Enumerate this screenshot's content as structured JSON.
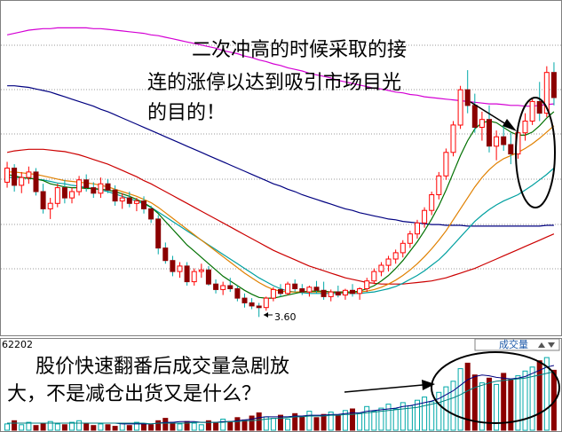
{
  "chart_data": [
    {
      "type": "candlestick",
      "panel": "price",
      "ylim": [
        3.4,
        7.6
      ],
      "grid": true,
      "low_label": "3.60",
      "annotation": [
        "二次冲高的时候采取的接",
        "连的涨停以达到吸引市场目光",
        "的目的！"
      ],
      "candles": [
        [
          5.32,
          5.58,
          5.25,
          5.5
        ],
        [
          5.5,
          5.55,
          5.2,
          5.28
        ],
        [
          5.28,
          5.45,
          5.18,
          5.38
        ],
        [
          5.38,
          5.52,
          5.3,
          5.45
        ],
        [
          5.45,
          5.5,
          5.15,
          5.2
        ],
        [
          5.2,
          5.3,
          4.92,
          4.98
        ],
        [
          4.98,
          5.12,
          4.85,
          5.05
        ],
        [
          5.05,
          5.3,
          5.0,
          5.25
        ],
        [
          5.25,
          5.35,
          5.05,
          5.12
        ],
        [
          5.12,
          5.25,
          5.05,
          5.2
        ],
        [
          5.2,
          5.4,
          5.15,
          5.35
        ],
        [
          5.35,
          5.42,
          5.2,
          5.25
        ],
        [
          5.25,
          5.32,
          5.12,
          5.18
        ],
        [
          5.18,
          5.38,
          5.12,
          5.3
        ],
        [
          5.3,
          5.36,
          5.18,
          5.22
        ],
        [
          5.22,
          5.28,
          5.02,
          5.08
        ],
        [
          5.08,
          5.18,
          4.98,
          5.12
        ],
        [
          5.12,
          5.2,
          5.0,
          5.05
        ],
        [
          5.05,
          5.12,
          4.95,
          5.08
        ],
        [
          5.08,
          5.14,
          4.92,
          4.98
        ],
        [
          4.98,
          5.02,
          4.8,
          4.85
        ],
        [
          4.85,
          4.9,
          4.4,
          4.48
        ],
        [
          4.48,
          4.55,
          4.28,
          4.32
        ],
        [
          4.32,
          4.38,
          4.12,
          4.18
        ],
        [
          4.18,
          4.3,
          4.1,
          4.25
        ],
        [
          4.25,
          4.3,
          4.0,
          4.05
        ],
        [
          4.05,
          4.22,
          4.0,
          4.18
        ],
        [
          4.18,
          4.28,
          4.1,
          4.2
        ],
        [
          4.2,
          4.25,
          4.0,
          4.02
        ],
        [
          4.02,
          4.08,
          3.9,
          3.95
        ],
        [
          3.95,
          4.05,
          3.88,
          4.0
        ],
        [
          4.0,
          4.1,
          3.92,
          3.96
        ],
        [
          3.96,
          4.0,
          3.8,
          3.84
        ],
        [
          3.84,
          3.9,
          3.72,
          3.78
        ],
        [
          3.78,
          3.84,
          3.7,
          3.74
        ],
        [
          3.74,
          3.78,
          3.6,
          3.72
        ],
        [
          3.72,
          3.86,
          3.68,
          3.84
        ],
        [
          3.84,
          3.98,
          3.8,
          3.95
        ],
        [
          3.95,
          4.02,
          3.86,
          3.9
        ],
        [
          3.9,
          4.05,
          3.88,
          4.02
        ],
        [
          4.02,
          4.08,
          3.92,
          3.96
        ],
        [
          3.96,
          4.02,
          3.88,
          3.92
        ],
        [
          3.92,
          4.0,
          3.86,
          3.98
        ],
        [
          3.98,
          4.06,
          3.9,
          3.94
        ],
        [
          3.94,
          4.05,
          3.82,
          3.86
        ],
        [
          3.86,
          3.95,
          3.8,
          3.92
        ],
        [
          3.92,
          4.0,
          3.85,
          3.88
        ],
        [
          3.88,
          3.96,
          3.82,
          3.94
        ],
        [
          3.94,
          4.02,
          3.86,
          3.9
        ],
        [
          3.9,
          3.98,
          3.82,
          3.96
        ],
        [
          3.96,
          4.1,
          3.92,
          4.06
        ],
        [
          4.06,
          4.22,
          4.02,
          4.18
        ],
        [
          4.18,
          4.3,
          4.12,
          4.26
        ],
        [
          4.26,
          4.38,
          4.18,
          4.34
        ],
        [
          4.34,
          4.46,
          4.28,
          4.42
        ],
        [
          4.42,
          4.58,
          4.36,
          4.54
        ],
        [
          4.54,
          4.7,
          4.48,
          4.66
        ],
        [
          4.66,
          4.84,
          4.6,
          4.8
        ],
        [
          4.8,
          5.0,
          4.74,
          4.96
        ],
        [
          4.96,
          5.2,
          4.9,
          5.16
        ],
        [
          5.16,
          5.45,
          5.1,
          5.4
        ],
        [
          5.4,
          5.75,
          5.35,
          5.7
        ],
        [
          5.7,
          6.1,
          5.65,
          6.05
        ],
        [
          6.05,
          6.55,
          6.0,
          6.5
        ],
        [
          6.5,
          6.75,
          6.2,
          6.3
        ],
        [
          6.3,
          6.45,
          5.95,
          6.02
        ],
        [
          6.02,
          6.22,
          5.85,
          6.12
        ],
        [
          6.12,
          6.3,
          5.7,
          5.78
        ],
        [
          5.78,
          5.98,
          5.6,
          5.9
        ],
        [
          5.9,
          6.05,
          5.72,
          5.8
        ],
        [
          5.8,
          5.95,
          5.55,
          5.68
        ],
        [
          5.68,
          6.0,
          5.62,
          5.95
        ],
        [
          5.95,
          6.2,
          5.85,
          6.1
        ],
        [
          6.1,
          6.4,
          6.05,
          6.35
        ],
        [
          6.35,
          6.6,
          6.1,
          6.2
        ],
        [
          6.2,
          6.8,
          6.15,
          6.72
        ],
        [
          6.72,
          6.85,
          6.3,
          6.4
        ]
      ],
      "lines": [
        {
          "color": "#d400d4",
          "values": [
            7.2,
            7.22,
            7.24,
            7.26,
            7.27,
            7.28,
            7.28,
            7.29,
            7.29,
            7.29,
            7.29,
            7.29,
            7.28,
            7.28,
            7.27,
            7.26,
            7.25,
            7.24,
            7.23,
            7.22,
            7.2,
            7.19,
            7.17,
            7.15,
            7.13,
            7.11,
            7.09,
            7.07,
            7.05,
            7.03,
            7.0,
            6.98,
            6.96,
            6.93,
            6.91,
            6.88,
            6.86,
            6.83,
            6.81,
            6.78,
            6.76,
            6.74,
            6.71,
            6.69,
            6.67,
            6.65,
            6.62,
            6.6,
            6.58,
            6.56,
            6.54,
            6.52,
            6.51,
            6.49,
            6.47,
            6.46,
            6.44,
            6.43,
            6.41,
            6.4,
            6.39,
            6.38,
            6.37,
            6.36,
            6.35,
            6.34,
            6.33,
            6.32,
            6.32,
            6.31,
            6.3,
            6.3,
            6.29,
            6.29,
            6.3,
            6.31,
            6.32
          ]
        },
        {
          "color": "#000080",
          "values": [
            6.55,
            6.55,
            6.54,
            6.53,
            6.51,
            6.49,
            6.47,
            6.44,
            6.41,
            6.38,
            6.35,
            6.32,
            6.29,
            6.25,
            6.22,
            6.18,
            6.14,
            6.1,
            6.06,
            6.02,
            5.98,
            5.94,
            5.9,
            5.86,
            5.82,
            5.78,
            5.74,
            5.7,
            5.66,
            5.62,
            5.58,
            5.54,
            5.5,
            5.46,
            5.42,
            5.38,
            5.34,
            5.3,
            5.27,
            5.23,
            5.2,
            5.16,
            5.13,
            5.1,
            5.07,
            5.04,
            5.01,
            4.98,
            4.96,
            4.93,
            4.91,
            4.89,
            4.87,
            4.85,
            4.84,
            4.82,
            4.81,
            4.8,
            4.79,
            4.78,
            4.78,
            4.77,
            4.77,
            4.77,
            4.76,
            4.76,
            4.76,
            4.76,
            4.76,
            4.76,
            4.76,
            4.76,
            4.76,
            4.76,
            4.76,
            4.77,
            4.77
          ]
        },
        {
          "color": "#cc0000",
          "values": [
            5.7,
            5.72,
            5.73,
            5.74,
            5.74,
            5.74,
            5.73,
            5.72,
            5.71,
            5.69,
            5.67,
            5.64,
            5.61,
            5.58,
            5.55,
            5.51,
            5.47,
            5.43,
            5.39,
            5.34,
            5.3,
            5.25,
            5.2,
            5.15,
            5.1,
            5.05,
            5.0,
            4.95,
            4.9,
            4.85,
            4.8,
            4.75,
            4.7,
            4.65,
            4.6,
            4.55,
            4.5,
            4.45,
            4.41,
            4.37,
            4.33,
            4.29,
            4.25,
            4.22,
            4.19,
            4.16,
            4.13,
            4.1,
            4.08,
            4.06,
            4.04,
            4.03,
            4.02,
            4.02,
            4.02,
            4.02,
            4.03,
            4.04,
            4.05,
            4.06,
            4.08,
            4.1,
            4.13,
            4.16,
            4.19,
            4.22,
            4.26,
            4.3,
            4.34,
            4.38,
            4.42,
            4.46,
            4.5,
            4.54,
            4.58,
            4.62,
            4.66
          ]
        },
        {
          "color": "#00a0a0",
          "values": [
            5.38,
            5.38,
            5.38,
            5.37,
            5.36,
            5.35,
            5.33,
            5.31,
            5.3,
            5.28,
            5.27,
            5.25,
            5.24,
            5.22,
            5.2,
            5.17,
            5.14,
            5.11,
            5.08,
            5.04,
            5.0,
            4.94,
            4.88,
            4.82,
            4.76,
            4.7,
            4.64,
            4.58,
            4.52,
            4.46,
            4.4,
            4.34,
            4.28,
            4.22,
            4.16,
            4.1,
            4.05,
            4.0,
            3.96,
            3.93,
            3.92,
            3.91,
            3.9,
            3.9,
            3.9,
            3.9,
            3.9,
            3.9,
            3.9,
            3.9,
            3.91,
            3.92,
            3.94,
            3.96,
            3.99,
            4.03,
            4.08,
            4.13,
            4.19,
            4.26,
            4.33,
            4.42,
            4.52,
            4.62,
            4.72,
            4.82,
            4.9,
            4.97,
            5.03,
            5.08,
            5.12,
            5.16,
            5.22,
            5.28,
            5.35,
            5.42,
            5.5
          ]
        },
        {
          "color": "#e08000",
          "values": [
            5.45,
            5.45,
            5.44,
            5.43,
            5.42,
            5.4,
            5.38,
            5.36,
            5.34,
            5.33,
            5.32,
            5.31,
            5.3,
            5.28,
            5.26,
            5.23,
            5.2,
            5.17,
            5.14,
            5.1,
            5.06,
            5.0,
            4.93,
            4.86,
            4.79,
            4.72,
            4.65,
            4.58,
            4.51,
            4.44,
            4.37,
            4.3,
            4.23,
            4.16,
            4.1,
            4.04,
            3.99,
            3.95,
            3.93,
            3.92,
            3.92,
            3.92,
            3.92,
            3.92,
            3.92,
            3.92,
            3.91,
            3.91,
            3.91,
            3.92,
            3.93,
            3.95,
            3.98,
            4.02,
            4.07,
            4.13,
            4.2,
            4.28,
            4.37,
            4.47,
            4.58,
            4.7,
            4.84,
            4.98,
            5.12,
            5.26,
            5.38,
            5.48,
            5.56,
            5.62,
            5.66,
            5.7,
            5.75,
            5.81,
            5.88,
            5.96,
            6.04
          ]
        },
        {
          "color": "#007000",
          "values": [
            5.42,
            5.4,
            5.38,
            5.37,
            5.36,
            5.34,
            5.3,
            5.28,
            5.26,
            5.25,
            5.25,
            5.24,
            5.24,
            5.23,
            5.22,
            5.2,
            5.17,
            5.14,
            5.1,
            5.06,
            5.0,
            4.92,
            4.82,
            4.72,
            4.62,
            4.52,
            4.44,
            4.36,
            4.28,
            4.2,
            4.12,
            4.06,
            4.0,
            3.94,
            3.89,
            3.85,
            3.84,
            3.84,
            3.86,
            3.88,
            3.9,
            3.92,
            3.93,
            3.93,
            3.93,
            3.92,
            3.92,
            3.92,
            3.92,
            3.93,
            3.96,
            4.0,
            4.06,
            4.13,
            4.22,
            4.32,
            4.44,
            4.56,
            4.7,
            4.85,
            5.02,
            5.22,
            5.44,
            5.66,
            5.85,
            6.0,
            6.08,
            6.1,
            6.08,
            6.02,
            5.96,
            5.92,
            5.92,
            5.96,
            6.04,
            6.14,
            6.22
          ]
        }
      ]
    },
    {
      "type": "bar",
      "panel": "volume",
      "left_label": "62202",
      "title_button": "成交量",
      "annotation": [
        "股价快速翻番后成交量急剧放",
        "大，不是减仓出货又是什么？"
      ],
      "ylim": [
        0,
        100
      ],
      "values": [
        8,
        12,
        7,
        10,
        6,
        9,
        11,
        8,
        7,
        10,
        12,
        9,
        6,
        8,
        7,
        5,
        9,
        6,
        10,
        8,
        7,
        12,
        15,
        10,
        8,
        11,
        9,
        7,
        12,
        10,
        14,
        11,
        16,
        13,
        18,
        22,
        17,
        15,
        19,
        14,
        21,
        18,
        24,
        16,
        20,
        23,
        19,
        25,
        27,
        21,
        30,
        24,
        28,
        33,
        27,
        35,
        31,
        38,
        42,
        36,
        48,
        55,
        62,
        78,
        85,
        70,
        60,
        66,
        58,
        72,
        64,
        69,
        75,
        80,
        88,
        92,
        76
      ],
      "ma_lines": [
        {
          "color": "#000080",
          "values": [
            9,
            9,
            9,
            9,
            9,
            9,
            9,
            9,
            9,
            9,
            9,
            9,
            9,
            9,
            9,
            9,
            8,
            8,
            8,
            8,
            8,
            9,
            10,
            10,
            11,
            11,
            11,
            10,
            10,
            10,
            11,
            11,
            12,
            13,
            14,
            16,
            17,
            17,
            17,
            17,
            18,
            18,
            19,
            19,
            19,
            20,
            20,
            21,
            22,
            22,
            24,
            25,
            26,
            27,
            28,
            30,
            31,
            33,
            35,
            37,
            40,
            45,
            50,
            57,
            64,
            68,
            70,
            69,
            67,
            66,
            65,
            66,
            68,
            72,
            76,
            80,
            82
          ]
        },
        {
          "color": "#008080",
          "values": [
            9,
            9,
            9,
            9,
            9,
            9,
            9,
            9,
            9,
            9,
            9,
            9,
            9,
            9,
            9,
            9,
            9,
            9,
            9,
            9,
            8,
            9,
            9,
            9,
            9,
            9,
            10,
            10,
            10,
            10,
            10,
            11,
            11,
            12,
            12,
            13,
            14,
            15,
            15,
            16,
            17,
            17,
            18,
            18,
            18,
            19,
            19,
            20,
            20,
            21,
            22,
            23,
            24,
            25,
            26,
            27,
            28,
            29,
            31,
            33,
            35,
            38,
            41,
            45,
            50,
            54,
            57,
            60,
            62,
            63,
            64,
            65,
            66,
            68,
            70,
            72,
            74
          ]
        }
      ]
    }
  ],
  "colors": {
    "up": "#ff0000",
    "down": "#00a8a8",
    "down_body": "#8b0000",
    "grid": "#9a9a9a",
    "annotation_text": "#000000",
    "arrow": "#000000"
  }
}
